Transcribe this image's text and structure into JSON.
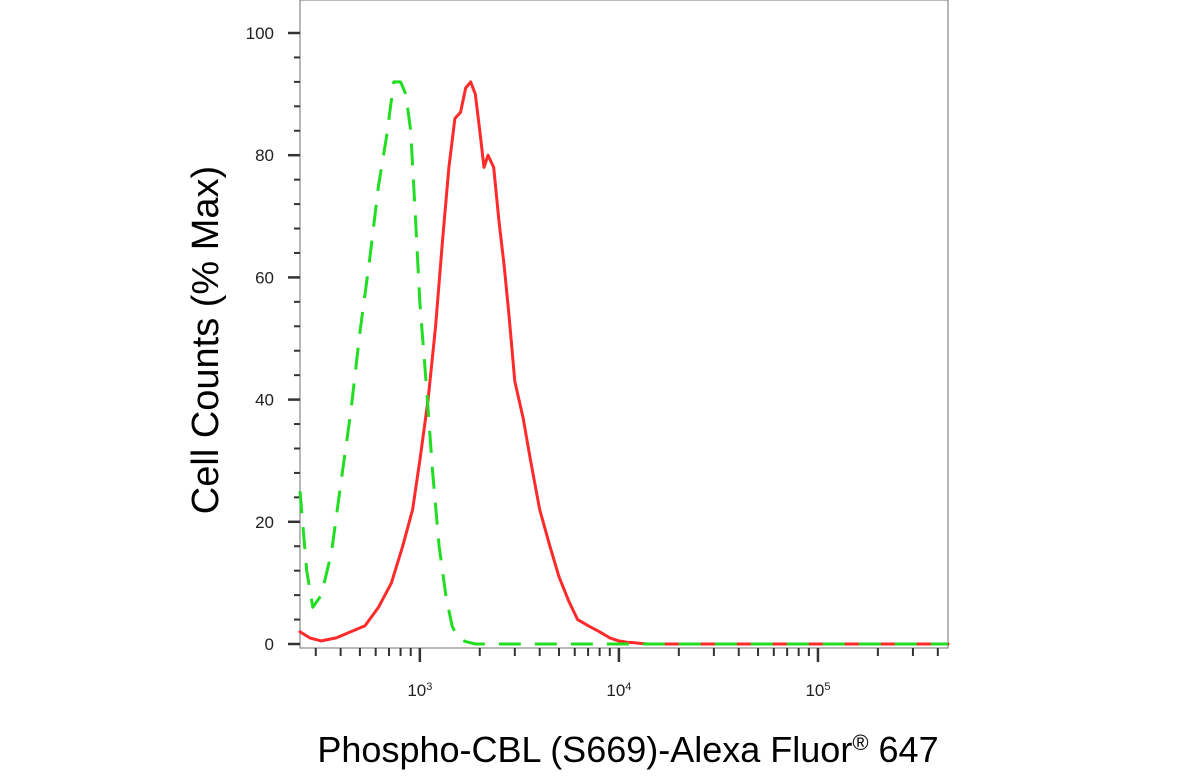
{
  "chart_data": {
    "type": "line",
    "xscale": "log",
    "xlim": [
      250,
      450000
    ],
    "ylim": [
      0,
      100
    ],
    "grid": false,
    "xlabel": "Phospho-CBL (S669)-Alexa Fluor",
    "xlabel_superscript": "®",
    "xlabel_suffix": " 647",
    "ylabel": "Cell Counts (% Max)",
    "yticks": [
      {
        "value": 0,
        "label": "0"
      },
      {
        "value": 20,
        "label": "20"
      },
      {
        "value": 40,
        "label": "40"
      },
      {
        "value": 60,
        "label": "60"
      },
      {
        "value": 80,
        "label": "80"
      },
      {
        "value": 100,
        "label": "100"
      }
    ],
    "xticks": [
      {
        "value": 1000,
        "base": "10",
        "exp": "3"
      },
      {
        "value": 10000,
        "base": "10",
        "exp": "4"
      },
      {
        "value": 100000,
        "base": "10",
        "exp": "5"
      }
    ],
    "series": [
      {
        "color": "#ff2a2a",
        "dash": "solid",
        "x": [
          250,
          280,
          320,
          380,
          450,
          530,
          620,
          720,
          820,
          920,
          1000,
          1100,
          1200,
          1300,
          1400,
          1500,
          1600,
          1700,
          1800,
          1900,
          2000,
          2100,
          2200,
          2350,
          2500,
          2650,
          2800,
          3000,
          3300,
          3600,
          4000,
          4500,
          5000,
          5600,
          6200,
          7000,
          8000,
          9000,
          10000,
          11000,
          12000,
          14000,
          20000,
          50000,
          100000,
          200000,
          450000
        ],
        "y": [
          2,
          1,
          0.5,
          1,
          2,
          3,
          6,
          10,
          16,
          22,
          30,
          40,
          52,
          66,
          78,
          86,
          87,
          91,
          92,
          90,
          84,
          78,
          80,
          78,
          69,
          62,
          54,
          43,
          37,
          30,
          22,
          16,
          11,
          7,
          4,
          3,
          2,
          1,
          0.5,
          0.3,
          0.2,
          0,
          0,
          0,
          0,
          0,
          0
        ]
      },
      {
        "color": "#22dd22",
        "dash": "dashed",
        "x": [
          250,
          270,
          290,
          320,
          360,
          400,
          450,
          500,
          560,
          620,
          680,
          740,
          800,
          850,
          900,
          950,
          1000,
          1080,
          1160,
          1250,
          1350,
          1450,
          1550,
          1700,
          1900,
          2200,
          3000,
          5000,
          10000,
          50000,
          100000,
          450000
        ],
        "y": [
          25,
          12,
          6,
          8,
          15,
          26,
          38,
          51,
          63,
          75,
          83,
          92,
          92,
          90,
          84,
          70,
          56,
          42,
          28,
          16,
          8,
          3,
          1,
          0.4,
          0,
          0,
          0,
          0,
          0,
          0,
          0,
          0
        ]
      }
    ]
  }
}
